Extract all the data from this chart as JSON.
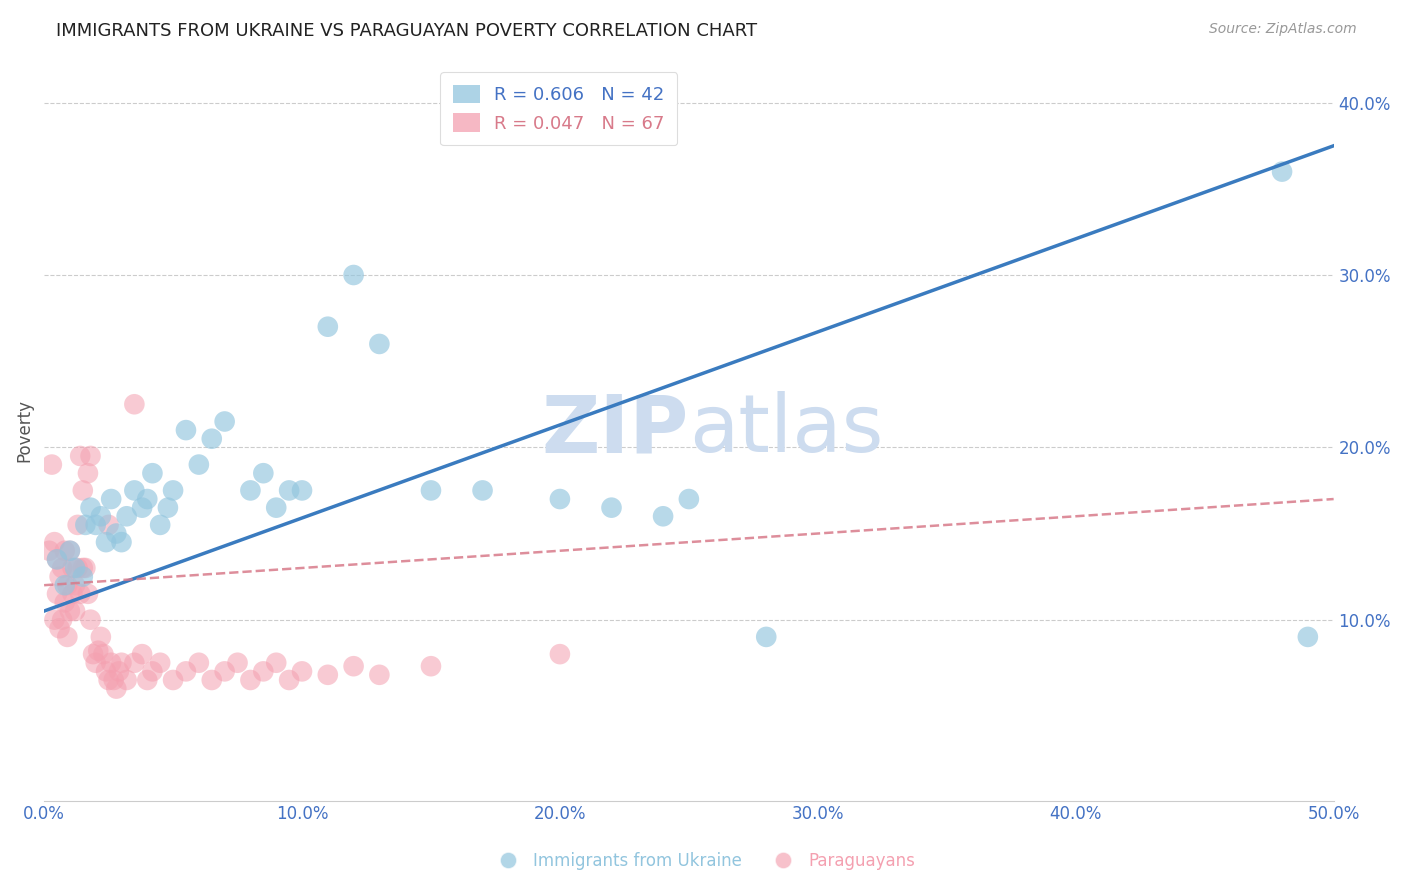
{
  "title": "IMMIGRANTS FROM UKRAINE VS PARAGUAYAN POVERTY CORRELATION CHART",
  "source": "Source: ZipAtlas.com",
  "ylabel": "Poverty",
  "xlim": [
    0.0,
    0.5
  ],
  "ylim": [
    -0.005,
    0.425
  ],
  "xticks": [
    0.0,
    0.1,
    0.2,
    0.3,
    0.4,
    0.5
  ],
  "yticks": [
    0.1,
    0.2,
    0.3,
    0.4
  ],
  "ytick_labels": [
    "10.0%",
    "20.0%",
    "30.0%",
    "40.0%"
  ],
  "xtick_labels": [
    "0.0%",
    "10.0%",
    "20.0%",
    "30.0%",
    "40.0%",
    "50.0%"
  ],
  "ukraine_color": "#92c5de",
  "paraguay_color": "#f4a0b0",
  "ukraine_line_color": "#3a7bbf",
  "paraguay_line_color": "#d87a8a",
  "legend_ukraine_R": "0.606",
  "legend_ukraine_N": "42",
  "legend_paraguay_R": "0.047",
  "legend_paraguay_N": "67",
  "watermark_zip": "ZIP",
  "watermark_atlas": "atlas",
  "watermark_color": "#cddcef",
  "ukraine_scatter_x": [
    0.005,
    0.008,
    0.01,
    0.012,
    0.015,
    0.016,
    0.018,
    0.02,
    0.022,
    0.024,
    0.026,
    0.028,
    0.03,
    0.032,
    0.035,
    0.038,
    0.04,
    0.042,
    0.045,
    0.048,
    0.05,
    0.055,
    0.06,
    0.065,
    0.07,
    0.08,
    0.085,
    0.09,
    0.095,
    0.1,
    0.11,
    0.12,
    0.13,
    0.15,
    0.17,
    0.2,
    0.22,
    0.24,
    0.25,
    0.28,
    0.48,
    0.49
  ],
  "ukraine_scatter_y": [
    0.135,
    0.12,
    0.14,
    0.13,
    0.125,
    0.155,
    0.165,
    0.155,
    0.16,
    0.145,
    0.17,
    0.15,
    0.145,
    0.16,
    0.175,
    0.165,
    0.17,
    0.185,
    0.155,
    0.165,
    0.175,
    0.21,
    0.19,
    0.205,
    0.215,
    0.175,
    0.185,
    0.165,
    0.175,
    0.175,
    0.27,
    0.3,
    0.26,
    0.175,
    0.175,
    0.17,
    0.165,
    0.16,
    0.17,
    0.09,
    0.36,
    0.09
  ],
  "paraguay_scatter_x": [
    0.002,
    0.003,
    0.004,
    0.004,
    0.005,
    0.005,
    0.006,
    0.006,
    0.007,
    0.007,
    0.008,
    0.008,
    0.009,
    0.009,
    0.01,
    0.01,
    0.011,
    0.011,
    0.012,
    0.012,
    0.013,
    0.013,
    0.014,
    0.014,
    0.015,
    0.015,
    0.016,
    0.017,
    0.017,
    0.018,
    0.018,
    0.019,
    0.02,
    0.021,
    0.022,
    0.023,
    0.024,
    0.025,
    0.025,
    0.026,
    0.027,
    0.028,
    0.029,
    0.03,
    0.032,
    0.035,
    0.035,
    0.038,
    0.04,
    0.042,
    0.045,
    0.05,
    0.055,
    0.06,
    0.065,
    0.07,
    0.075,
    0.08,
    0.085,
    0.09,
    0.095,
    0.1,
    0.11,
    0.12,
    0.13,
    0.15,
    0.2
  ],
  "paraguay_scatter_y": [
    0.14,
    0.19,
    0.145,
    0.1,
    0.135,
    0.115,
    0.125,
    0.095,
    0.13,
    0.1,
    0.11,
    0.14,
    0.12,
    0.09,
    0.14,
    0.105,
    0.13,
    0.115,
    0.12,
    0.105,
    0.155,
    0.13,
    0.195,
    0.115,
    0.175,
    0.13,
    0.13,
    0.115,
    0.185,
    0.195,
    0.1,
    0.08,
    0.075,
    0.082,
    0.09,
    0.08,
    0.07,
    0.065,
    0.155,
    0.075,
    0.065,
    0.06,
    0.07,
    0.075,
    0.065,
    0.225,
    0.075,
    0.08,
    0.065,
    0.07,
    0.075,
    0.065,
    0.07,
    0.075,
    0.065,
    0.07,
    0.075,
    0.065,
    0.07,
    0.075,
    0.065,
    0.07,
    0.068,
    0.073,
    0.068,
    0.073,
    0.08
  ],
  "ukraine_trend_x": [
    0.0,
    0.5
  ],
  "ukraine_trend_y": [
    0.105,
    0.375
  ],
  "paraguay_trend_x": [
    0.0,
    0.5
  ],
  "paraguay_trend_y": [
    0.12,
    0.17
  ],
  "tick_color": "#4472c4",
  "grid_color": "#cccccc",
  "title_fontsize": 13,
  "source_fontsize": 10,
  "axis_fontsize": 12
}
